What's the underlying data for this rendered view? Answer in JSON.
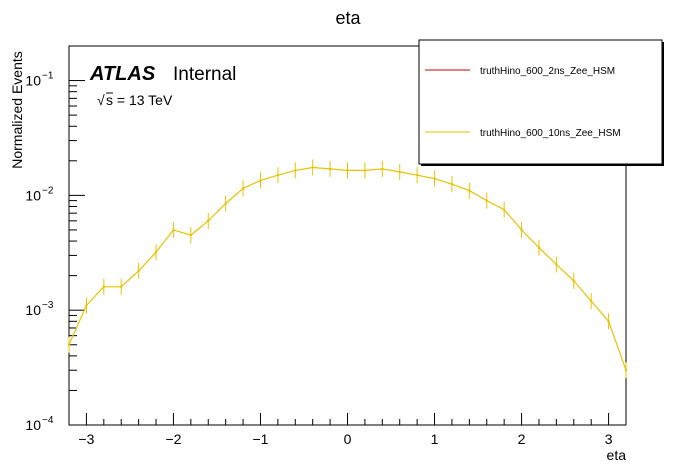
{
  "chart_data": {
    "type": "line",
    "title": "eta",
    "xlabel": "eta",
    "ylabel": "Normalized Events",
    "x_range": [
      -3.2,
      3.2
    ],
    "y_range": [
      0.0001,
      0.2
    ],
    "y_scale": "log",
    "x_ticks": [
      -3,
      -2,
      -1,
      0,
      1,
      2,
      3
    ],
    "y_ticks": [
      {
        "value": 0.0001,
        "base": "10",
        "exp": "−4"
      },
      {
        "value": 0.001,
        "base": "10",
        "exp": "−3"
      },
      {
        "value": 0.01,
        "base": "10",
        "exp": "−2"
      },
      {
        "value": 0.1,
        "base": "10",
        "exp": "−1"
      }
    ],
    "grid": false,
    "legend_position": "top-right",
    "atlas_label": "ATLAS",
    "atlas_status": "Internal",
    "energy_label": "s = 13 TeV",
    "energy_sqrt": "√",
    "series": [
      {
        "name": "truthHino_600_2ns_Zee_HSM",
        "color": "#cc0000",
        "x": [],
        "y": []
      },
      {
        "name": "truthHino_600_10ns_Zee_HSM",
        "color": "#e8c200",
        "x": [
          -3.2,
          -3.0,
          -2.8,
          -2.6,
          -2.4,
          -2.2,
          -2.0,
          -1.8,
          -1.6,
          -1.4,
          -1.2,
          -1.0,
          -0.8,
          -0.6,
          -0.4,
          -0.2,
          0.0,
          0.2,
          0.4,
          0.6,
          0.8,
          1.0,
          1.2,
          1.4,
          1.6,
          1.8,
          2.0,
          2.2,
          2.4,
          2.6,
          2.8,
          3.0,
          3.2
        ],
        "y": [
          0.0005,
          0.0011,
          0.0016,
          0.0016,
          0.0022,
          0.0032,
          0.005,
          0.0045,
          0.006,
          0.0085,
          0.0115,
          0.0135,
          0.015,
          0.0165,
          0.0175,
          0.017,
          0.0165,
          0.0165,
          0.017,
          0.016,
          0.015,
          0.014,
          0.0125,
          0.011,
          0.009,
          0.0075,
          0.005,
          0.0035,
          0.0025,
          0.0018,
          0.0012,
          0.0008,
          0.0003
        ]
      }
    ]
  }
}
